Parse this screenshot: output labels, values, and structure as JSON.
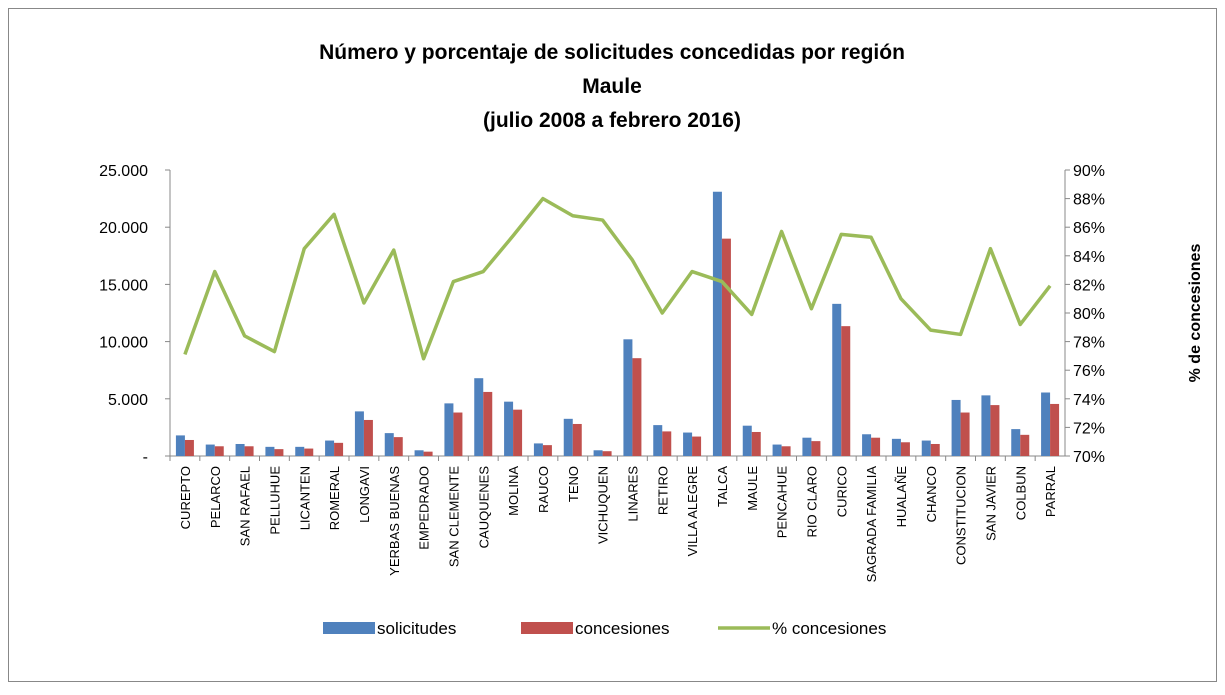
{
  "chart_data": {
    "type": "bar_line",
    "title": [
      "Número y porcentaje de solicitudes concedidas por región",
      "Maule",
      "(julio 2008 a febrero 2016)"
    ],
    "y2_label": "% de concesiones",
    "categories": [
      "CUREPTO",
      "PELARCO",
      "SAN RAFAEL",
      "PELLUHUE",
      "LICANTEN",
      "ROMERAL",
      "LONGAVI",
      "YERBAS BUENAS",
      "EMPEDRADO",
      "SAN CLEMENTE",
      "CAUQUENES",
      "MOLINA",
      "RAUCO",
      "TENO",
      "VICHUQUEN",
      "LINARES",
      "RETIRO",
      "VILLA ALEGRE",
      "TALCA",
      "MAULE",
      "PENCAHUE",
      "RIO CLARO",
      "CURICO",
      "SAGRADA FAMILIA",
      "HUALAÑE",
      "CHANCO",
      "CONSTITUCION",
      "SAN JAVIER",
      "COLBUN",
      "PARRAL"
    ],
    "series": [
      {
        "name": "solicitudes",
        "color": "#4f81bd",
        "type": "bar",
        "values": [
          1800,
          1000,
          1050,
          800,
          800,
          1350,
          3900,
          2000,
          500,
          4600,
          6800,
          4750,
          1100,
          3250,
          500,
          10200,
          2700,
          2050,
          23100,
          2650,
          1000,
          1600,
          13300,
          1900,
          1500,
          1350,
          4900,
          5300,
          2350,
          5550
        ]
      },
      {
        "name": "concesiones",
        "color": "#c0504d",
        "type": "bar",
        "values": [
          1400,
          850,
          850,
          600,
          650,
          1150,
          3150,
          1650,
          380,
          3800,
          5600,
          4050,
          950,
          2800,
          420,
          8550,
          2150,
          1700,
          19000,
          2100,
          850,
          1300,
          11350,
          1600,
          1200,
          1050,
          3800,
          4450,
          1850,
          4550
        ]
      },
      {
        "name": "% concesiones",
        "color": "#9bbb59",
        "type": "line",
        "axis": "y2",
        "values": [
          77.1,
          82.9,
          78.4,
          77.3,
          84.5,
          86.9,
          80.7,
          84.4,
          76.8,
          82.2,
          82.9,
          85.4,
          88.0,
          86.8,
          86.5,
          83.7,
          80.0,
          82.9,
          82.2,
          79.9,
          85.7,
          80.3,
          85.5,
          85.3,
          81.0,
          78.8,
          78.5,
          84.5,
          79.2,
          81.9
        ]
      }
    ],
    "ylim": [
      0,
      25000
    ],
    "yticks": [
      {
        "value": 0,
        "label": "-"
      },
      {
        "value": 5000,
        "label": "5.000"
      },
      {
        "value": 10000,
        "label": "10.000"
      },
      {
        "value": 15000,
        "label": "15.000"
      },
      {
        "value": 20000,
        "label": "20.000"
      },
      {
        "value": 25000,
        "label": "25.000"
      }
    ],
    "y2lim": [
      70,
      90
    ],
    "y2ticks": [
      {
        "value": 70,
        "label": "70%"
      },
      {
        "value": 72,
        "label": "72%"
      },
      {
        "value": 74,
        "label": "74%"
      },
      {
        "value": 76,
        "label": "76%"
      },
      {
        "value": 78,
        "label": "78%"
      },
      {
        "value": 80,
        "label": "80%"
      },
      {
        "value": 82,
        "label": "82%"
      },
      {
        "value": 84,
        "label": "84%"
      },
      {
        "value": 86,
        "label": "86%"
      },
      {
        "value": 88,
        "label": "88%"
      },
      {
        "value": 90,
        "label": "90%"
      }
    ],
    "grid": false,
    "legend": "bottom"
  }
}
